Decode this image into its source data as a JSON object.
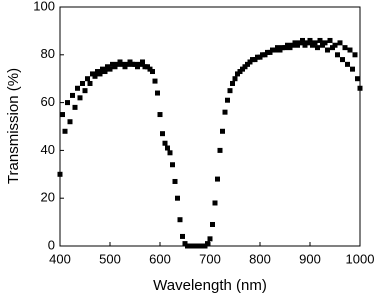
{
  "chart_data": {
    "type": "scatter",
    "x_label": "Wavelength (nm)",
    "y_label": "Transmission (%)",
    "color": "#000000",
    "x": [
      400,
      405,
      410,
      415,
      420,
      425,
      430,
      435,
      440,
      445,
      450,
      455,
      460,
      465,
      470,
      475,
      480,
      485,
      490,
      495,
      500,
      505,
      510,
      515,
      520,
      525,
      530,
      535,
      540,
      545,
      550,
      555,
      560,
      565,
      570,
      575,
      580,
      585,
      590,
      595,
      600,
      605,
      610,
      615,
      620,
      625,
      630,
      635,
      640,
      645,
      650,
      655,
      660,
      665,
      670,
      675,
      680,
      685,
      690,
      695,
      700,
      705,
      710,
      715,
      720,
      725,
      730,
      735,
      740,
      745,
      750,
      755,
      760,
      765,
      770,
      775,
      780,
      785,
      790,
      795,
      800,
      805,
      810,
      815,
      820,
      825,
      830,
      835,
      840,
      845,
      850,
      855,
      860,
      865,
      870,
      875,
      880,
      885,
      890,
      895,
      900,
      905,
      910,
      915,
      920,
      925,
      930,
      935,
      940,
      945,
      950,
      955,
      960,
      965,
      970,
      975,
      980,
      985,
      990,
      995,
      1000
    ],
    "values": [
      30,
      55,
      48,
      60,
      52,
      63,
      58,
      66,
      62,
      68,
      65,
      70,
      68,
      72,
      71,
      73,
      72,
      74,
      73,
      75,
      74,
      76,
      75,
      76,
      77,
      76,
      75,
      76,
      77,
      76,
      76,
      75,
      76,
      77,
      75,
      75,
      74,
      73,
      69,
      64,
      55,
      47,
      43,
      41,
      39,
      34,
      27,
      20,
      11,
      4,
      1,
      0,
      0,
      0,
      0,
      0,
      0,
      0,
      0,
      1,
      3,
      9,
      18,
      28,
      40,
      48,
      56,
      61,
      65,
      68,
      70,
      72,
      73,
      74,
      75,
      76,
      77,
      78,
      78,
      79,
      79,
      80,
      80,
      81,
      81,
      82,
      82,
      83,
      82,
      83,
      83,
      84,
      83,
      84,
      85,
      84,
      85,
      86,
      84,
      85,
      86,
      84,
      85,
      83,
      86,
      84,
      85,
      82,
      86,
      83,
      84,
      80,
      85,
      78,
      83,
      76,
      82,
      74,
      80,
      70,
      66
    ],
    "xlim": [
      400,
      1000
    ],
    "xticks": [
      400,
      500,
      600,
      700,
      800,
      900,
      1000
    ],
    "ylim": [
      0,
      100
    ],
    "yticks": [
      0,
      20,
      40,
      60,
      80,
      100
    ]
  }
}
